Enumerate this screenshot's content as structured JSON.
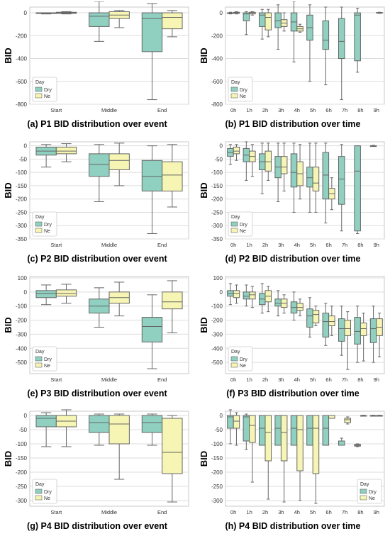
{
  "colors": {
    "dry": "#8fd0c0",
    "ne": "#f7f5b4",
    "edge": "#666666",
    "grid": "#dddddd",
    "frame": "#c8c8c8"
  },
  "chart_data": [
    {
      "type": "box",
      "caption": "(a) P1 BID distribution over event",
      "ylabel": "BID",
      "ylim": [
        -800,
        50
      ],
      "yticks": [
        0,
        -200,
        -400,
        -600,
        -800
      ],
      "categories": [
        "Start",
        "Middle",
        "End"
      ],
      "grid": true,
      "legend": {
        "title": "Day",
        "items": [
          "Dry",
          "Ne"
        ],
        "position": "bottom-left"
      },
      "series": [
        {
          "name": "Dry",
          "boxes": [
            [
              -10,
              -5,
              0,
              0,
              0
            ],
            [
              -250,
              -120,
              -30,
              0,
              100
            ],
            [
              -760,
              -340,
              -50,
              0,
              80
            ]
          ]
        },
        {
          "name": "Ne",
          "boxes": [
            [
              -10,
              -5,
              0,
              5,
              10
            ],
            [
              -130,
              -50,
              -20,
              10,
              20
            ],
            [
              -210,
              -140,
              -40,
              0,
              20
            ]
          ]
        }
      ]
    },
    {
      "type": "box",
      "caption": "(b) P1 BID distribution over time",
      "ylabel": "BID",
      "ylim": [
        -800,
        50
      ],
      "yticks": [
        0,
        -200,
        -400,
        -600,
        -800
      ],
      "categories": [
        "0h",
        "1h",
        "2h",
        "3h",
        "4h",
        "5h",
        "6h",
        "7h",
        "8h",
        "9h"
      ],
      "grid": true,
      "legend": {
        "title": "Day",
        "items": [
          "Dry",
          "Ne"
        ],
        "position": "bottom-left"
      },
      "series": [
        {
          "name": "Dry",
          "boxes": [
            [
              -10,
              -5,
              0,
              0,
              5
            ],
            [
              -190,
              -70,
              -10,
              0,
              10
            ],
            [
              -230,
              -120,
              -20,
              0,
              30
            ],
            [
              -320,
              -130,
              -70,
              0,
              70
            ],
            [
              -430,
              -160,
              -80,
              0,
              100
            ],
            [
              -600,
              -240,
              -130,
              -20,
              70
            ],
            [
              -630,
              -320,
              -240,
              -70,
              50
            ],
            [
              -760,
              -400,
              -250,
              -50,
              50
            ],
            [
              -520,
              -420,
              -20,
              0,
              40
            ],
            null
          ]
        },
        {
          "name": "Ne",
          "boxes": [
            [
              -10,
              -5,
              0,
              5,
              10
            ],
            [
              -20,
              -10,
              0,
              5,
              10
            ],
            [
              -210,
              -150,
              -40,
              0,
              30
            ],
            [
              -160,
              -120,
              -90,
              -60,
              0
            ],
            [
              -170,
              -160,
              -140,
              -120,
              -100
            ],
            null,
            null,
            null,
            null,
            [
              -5,
              -3,
              0,
              3,
              5
            ]
          ]
        }
      ]
    },
    {
      "type": "box",
      "caption": "(c) P2 BID distribution over event",
      "ylabel": "BID",
      "ylim": [
        -350,
        15
      ],
      "yticks": [
        0,
        -50,
        -100,
        -150,
        -200,
        -250,
        -300,
        -350
      ],
      "categories": [
        "Start",
        "Middle",
        "End"
      ],
      "grid": true,
      "legend": {
        "title": "Day",
        "items": [
          "Dry",
          "Ne"
        ],
        "position": "bottom-left"
      },
      "series": [
        {
          "name": "Dry",
          "boxes": [
            [
              -80,
              -35,
              -20,
              -5,
              5
            ],
            [
              -210,
              -115,
              -70,
              -30,
              5
            ],
            [
              -330,
              -170,
              -115,
              -55,
              0
            ]
          ]
        },
        {
          "name": "Ne",
          "boxes": [
            [
              -60,
              -30,
              -20,
              -5,
              8
            ],
            [
              -150,
              -90,
              -55,
              -30,
              10
            ],
            [
              -230,
              -170,
              -110,
              -60,
              5
            ]
          ]
        }
      ]
    },
    {
      "type": "box",
      "caption": "(d) P2 BID distribution over time",
      "ylabel": "BID",
      "ylim": [
        -350,
        15
      ],
      "yticks": [
        0,
        -50,
        -100,
        -150,
        -200,
        -250,
        -300,
        -350
      ],
      "categories": [
        "0h",
        "1h",
        "2h",
        "3h",
        "4h",
        "5h",
        "6h",
        "7h",
        "8h",
        "9h"
      ],
      "grid": true,
      "legend": {
        "title": "Day",
        "items": [
          "Dry",
          "Ne"
        ],
        "position": "bottom-left"
      },
      "series": [
        {
          "name": "Dry",
          "boxes": [
            [
              -70,
              -40,
              -25,
              -10,
              5
            ],
            [
              -130,
              -60,
              -35,
              -10,
              15
            ],
            [
              -180,
              -90,
              -60,
              -30,
              10
            ],
            [
              -210,
              -120,
              -80,
              -40,
              10
            ],
            [
              -250,
              -155,
              -100,
              -30,
              10
            ],
            [
              -250,
              -155,
              -120,
              -80,
              10
            ],
            [
              -290,
              -200,
              -110,
              -25,
              10
            ],
            [
              -320,
              -220,
              -125,
              -40,
              5
            ],
            [
              -330,
              -320,
              -95,
              0,
              0
            ],
            [
              -2,
              -1,
              0,
              0,
              2
            ]
          ]
        },
        {
          "name": "Ne",
          "boxes": [
            [
              -55,
              -30,
              -20,
              -5,
              5
            ],
            [
              -115,
              -60,
              -40,
              -20,
              5
            ],
            [
              -130,
              -95,
              -60,
              -20,
              10
            ],
            [
              -170,
              -105,
              -80,
              -40,
              10
            ],
            [
              -200,
              -150,
              -105,
              -60,
              5
            ],
            [
              -250,
              -170,
              -140,
              -80,
              10
            ],
            [
              -240,
              -200,
              -180,
              -160,
              -120
            ],
            null,
            null,
            null
          ]
        }
      ]
    },
    {
      "type": "box",
      "caption": "(e) P3 BID distribution over event",
      "ylabel": "BID",
      "ylim": [
        -580,
        110
      ],
      "yticks": [
        100,
        0,
        -100,
        -200,
        -300,
        -400,
        -500
      ],
      "categories": [
        "Start",
        "Middle",
        "End"
      ],
      "grid": true,
      "legend": {
        "title": "Day",
        "items": [
          "Dry",
          "Ne"
        ],
        "position": "bottom-left"
      },
      "series": [
        {
          "name": "Dry",
          "boxes": [
            [
              -90,
              -40,
              -10,
              10,
              50
            ],
            [
              -250,
              -150,
              -100,
              -50,
              30
            ],
            [
              -545,
              -355,
              -245,
              -180,
              -20
            ]
          ]
        },
        {
          "name": "Ne",
          "boxes": [
            [
              -80,
              -30,
              -10,
              15,
              55
            ],
            [
              -170,
              -80,
              -40,
              0,
              70
            ],
            [
              -290,
              -120,
              -70,
              0,
              80
            ]
          ]
        }
      ]
    },
    {
      "type": "box",
      "caption": "(f) P3 BID distribution over time",
      "ylabel": "BID",
      "ylim": [
        -580,
        110
      ],
      "yticks": [
        100,
        0,
        -100,
        -200,
        -300,
        -400,
        -500
      ],
      "categories": [
        "0h",
        "1h",
        "2h",
        "3h",
        "4h",
        "5h",
        "6h",
        "7h",
        "8h",
        "9h"
      ],
      "grid": true,
      "legend": {
        "title": "Day",
        "items": [
          "Dry",
          "Ne"
        ],
        "position": "bottom-left"
      },
      "series": [
        {
          "name": "Dry",
          "boxes": [
            [
              -90,
              -30,
              -10,
              10,
              60
            ],
            [
              -100,
              -50,
              -30,
              0,
              50
            ],
            [
              -150,
              -90,
              -50,
              -10,
              60
            ],
            [
              -170,
              -100,
              -80,
              -50,
              10
            ],
            [
              -200,
              -150,
              -110,
              -70,
              0
            ],
            [
              -320,
              -250,
              -170,
              -120,
              -40
            ],
            [
              -380,
              -320,
              -210,
              -150,
              -80
            ],
            [
              -450,
              -350,
              -260,
              -190,
              -100
            ],
            [
              -500,
              -370,
              -280,
              -180,
              -100
            ],
            [
              -500,
              -360,
              -260,
              -190,
              -100
            ]
          ]
        },
        {
          "name": "Ne",
          "boxes": [
            [
              -80,
              -40,
              -10,
              10,
              50
            ],
            [
              -110,
              -50,
              -20,
              0,
              40
            ],
            [
              -140,
              -70,
              -30,
              10,
              40
            ],
            [
              -150,
              -110,
              -80,
              -50,
              -20
            ],
            [
              -170,
              -130,
              -110,
              -80,
              -50
            ],
            [
              -240,
              -220,
              -160,
              -130,
              -100
            ],
            [
              -310,
              -240,
              -210,
              -170,
              -100
            ],
            [
              -550,
              -310,
              -260,
              -200,
              -140
            ],
            [
              -490,
              -310,
              -260,
              -220,
              -150
            ],
            [
              -460,
              -310,
              -250,
              -190,
              -150
            ]
          ]
        }
      ]
    },
    {
      "type": "box",
      "caption": "(g) P4 BID distribution over event",
      "ylabel": "BID",
      "ylim": [
        -320,
        15
      ],
      "yticks": [
        0,
        -50,
        -100,
        -150,
        -200,
        -250,
        -300
      ],
      "categories": [
        "Start",
        "Middle",
        "End"
      ],
      "grid": true,
      "legend": {
        "title": "Day",
        "items": [
          "Dry",
          "Ne"
        ],
        "position": "bottom-left"
      },
      "series": [
        {
          "name": "Dry",
          "boxes": [
            [
              -110,
              -40,
              -10,
              0,
              10
            ],
            [
              -105,
              -60,
              -25,
              0,
              5
            ],
            [
              -105,
              -60,
              -25,
              0,
              5
            ]
          ]
        },
        {
          "name": "Ne",
          "boxes": [
            [
              -110,
              -40,
              -20,
              0,
              20
            ],
            [
              -225,
              -100,
              -30,
              0,
              5
            ],
            [
              -305,
              -205,
              -130,
              -10,
              0
            ]
          ]
        }
      ]
    },
    {
      "type": "box",
      "caption": "(h) P4 BID distribution over time",
      "ylabel": "BID",
      "ylim": [
        -320,
        15
      ],
      "yticks": [
        0,
        -50,
        -100,
        -150,
        -200,
        -250,
        -300
      ],
      "categories": [
        "0h",
        "1h",
        "2h",
        "3h",
        "4h",
        "5h",
        "6h",
        "7h",
        "8h",
        "9h"
      ],
      "grid": true,
      "legend": {
        "title": "Day",
        "items": [
          "Dry",
          "Ne"
        ],
        "position": "bottom-right"
      },
      "series": [
        {
          "name": "Dry",
          "boxes": [
            [
              -100,
              -45,
              -5,
              0,
              20
            ],
            [
              -120,
              -90,
              -5,
              0,
              5
            ],
            [
              -105,
              -105,
              -45,
              0,
              0
            ],
            [
              -105,
              -105,
              -45,
              0,
              0
            ],
            [
              -105,
              -105,
              -45,
              0,
              0
            ],
            [
              -105,
              -105,
              -45,
              0,
              0
            ],
            [
              -105,
              -105,
              -45,
              0,
              0
            ],
            [
              -105,
              -105,
              -105,
              -90,
              -80
            ],
            [
              -110,
              -108,
              -105,
              -102,
              -100
            ],
            [
              -1,
              -1,
              0,
              0,
              1
            ]
          ]
        },
        {
          "name": "Ne",
          "boxes": [
            [
              -105,
              -45,
              -20,
              0,
              10
            ],
            [
              -235,
              -95,
              -35,
              0,
              0
            ],
            [
              -295,
              -160,
              -60,
              0,
              0
            ],
            [
              -305,
              -160,
              -60,
              0,
              0
            ],
            [
              -300,
              -195,
              -50,
              0,
              0
            ],
            [
              -310,
              -205,
              -45,
              0,
              0
            ],
            [
              -10,
              -10,
              0,
              0,
              0
            ],
            [
              -30,
              -25,
              -15,
              -10,
              -5
            ],
            [
              -1,
              -1,
              0,
              0,
              1
            ],
            [
              -1,
              -1,
              0,
              0,
              1
            ]
          ]
        }
      ]
    }
  ]
}
